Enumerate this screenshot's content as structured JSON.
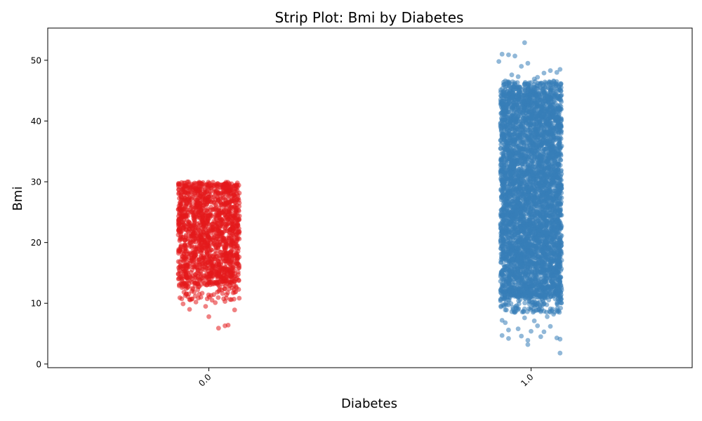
{
  "chart_data": {
    "type": "scatter",
    "title": "Strip Plot: Bmi by Diabetes",
    "xlabel": "Diabetes",
    "ylabel": "Bmi",
    "categories": [
      "0.0",
      "1.0"
    ],
    "ylim": [
      -0.6,
      55.3
    ],
    "yticks": [
      0,
      10,
      20,
      30,
      40,
      50
    ],
    "x_tick_rotation_deg": 45,
    "grid": false,
    "legend": "none",
    "series": [
      {
        "category": "0.0",
        "color": "#e41a1c",
        "jitter_width": 0.1,
        "dense_range": [
          13,
          30
        ],
        "outliers": [
          [
            -0.08,
            12.8
          ],
          [
            -0.05,
            12.3
          ],
          [
            0.04,
            12.2
          ],
          [
            0.08,
            11.8
          ],
          [
            -0.07,
            11.5
          ],
          [
            -0.03,
            11.5
          ],
          [
            -0.09,
            10.9
          ],
          [
            -0.06,
            10.6
          ],
          [
            0.01,
            10.5
          ],
          [
            0.07,
            10.6
          ],
          [
            -0.04,
            10.2
          ],
          [
            0.02,
            10.1
          ],
          [
            -0.08,
            9.9
          ],
          [
            0.05,
            10.3
          ],
          [
            -0.01,
            9.5
          ],
          [
            0.08,
            8.9
          ],
          [
            -0.06,
            9.0
          ],
          [
            -0.0,
            7.8
          ],
          [
            0.06,
            6.4
          ],
          [
            0.05,
            6.3
          ],
          [
            0.03,
            5.9
          ]
        ]
      },
      {
        "category": "1.0",
        "color": "#377eb8",
        "jitter_width": 0.1,
        "dense_range": [
          11,
          45
        ],
        "outliers": [
          [
            -0.02,
            52.9
          ],
          [
            -0.09,
            51.0
          ],
          [
            -0.07,
            50.9
          ],
          [
            -0.05,
            50.7
          ],
          [
            -0.01,
            49.5
          ],
          [
            -0.1,
            49.8
          ],
          [
            -0.03,
            49.0
          ],
          [
            0.06,
            48.3
          ],
          [
            0.09,
            48.5
          ],
          [
            0.08,
            48.0
          ],
          [
            0.04,
            47.9
          ],
          [
            -0.06,
            47.6
          ],
          [
            0.02,
            47.2
          ],
          [
            0.07,
            46.6
          ],
          [
            -0.08,
            46.6
          ],
          [
            0.01,
            46.9
          ],
          [
            -0.04,
            47.3
          ],
          [
            -0.08,
            8.9
          ],
          [
            -0.05,
            8.5
          ],
          [
            0.03,
            8.8
          ],
          [
            0.07,
            8.2
          ],
          [
            -0.09,
            7.2
          ],
          [
            -0.02,
            7.6
          ],
          [
            0.05,
            7.8
          ],
          [
            0.01,
            7.1
          ],
          [
            -0.08,
            6.8
          ],
          [
            -0.07,
            5.6
          ],
          [
            0.02,
            6.3
          ],
          [
            0.06,
            6.2
          ],
          [
            -0.04,
            5.8
          ],
          [
            0.0,
            5.4
          ],
          [
            0.04,
            5.3
          ],
          [
            -0.09,
            4.7
          ],
          [
            -0.03,
            4.6
          ],
          [
            0.08,
            4.3
          ],
          [
            -0.07,
            4.2
          ],
          [
            0.03,
            4.5
          ],
          [
            0.09,
            4.1
          ],
          [
            -0.01,
            3.9
          ],
          [
            -0.01,
            3.2
          ],
          [
            0.09,
            1.8
          ]
        ]
      }
    ]
  }
}
